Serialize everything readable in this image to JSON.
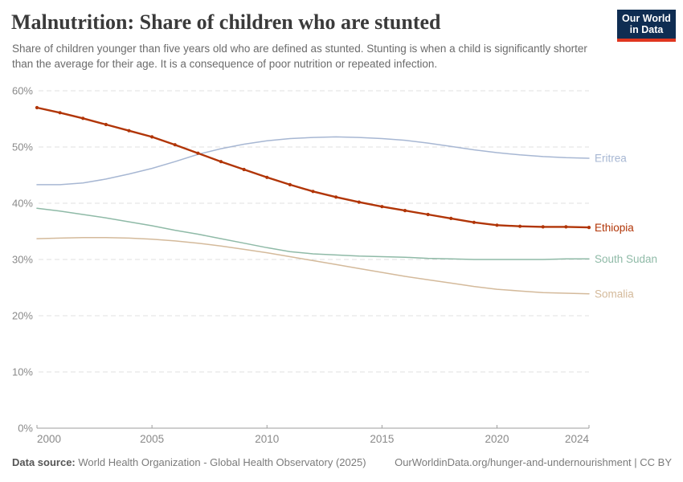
{
  "header": {
    "title": "Malnutrition: Share of children who are stunted",
    "subtitle": "Share of children younger than five years old who are defined as stunted. Stunting is when a child is significantly shorter than the average for their age. It is a consequence of poor nutrition or repeated infection.",
    "logo": {
      "line1": "Our World",
      "line2": "in Data",
      "bg_color": "#0f2d52",
      "accent_color": "#e0361f"
    }
  },
  "footer": {
    "data_source_label": "Data source:",
    "data_source_text": "World Health Organization - Global Health Observatory (2025)",
    "link_text": "OurWorldinData.org/hunger-and-undernourishment | CC BY"
  },
  "chart_data": {
    "type": "line",
    "title": "Malnutrition: Share of children who are stunted",
    "xlabel": "",
    "ylabel": "",
    "xlim": [
      2000,
      2024
    ],
    "ylim": [
      0,
      60
    ],
    "grid": "horizontal-dashed",
    "legend_position": "right-end-labels",
    "xticks": [
      {
        "value": 2000,
        "label": "2000"
      },
      {
        "value": 2005,
        "label": "2005"
      },
      {
        "value": 2010,
        "label": "2010"
      },
      {
        "value": 2015,
        "label": "2015"
      },
      {
        "value": 2020,
        "label": "2020"
      },
      {
        "value": 2024,
        "label": "2024"
      }
    ],
    "yticks": [
      {
        "value": 0,
        "label": "0%"
      },
      {
        "value": 10,
        "label": "10%"
      },
      {
        "value": 20,
        "label": "20%"
      },
      {
        "value": 30,
        "label": "30%"
      },
      {
        "value": 40,
        "label": "40%"
      },
      {
        "value": 50,
        "label": "50%"
      },
      {
        "value": 60,
        "label": "60%"
      }
    ],
    "x": [
      2000,
      2001,
      2002,
      2003,
      2004,
      2005,
      2006,
      2007,
      2008,
      2009,
      2010,
      2011,
      2012,
      2013,
      2014,
      2015,
      2016,
      2017,
      2018,
      2019,
      2020,
      2021,
      2022,
      2023,
      2024
    ],
    "series": [
      {
        "name": "Eritrea",
        "color": "#a7b7d3",
        "line_width": 1.5,
        "markers": false,
        "values": [
          43.3,
          43.3,
          43.6,
          44.3,
          45.2,
          46.2,
          47.4,
          48.7,
          49.7,
          50.5,
          51.1,
          51.5,
          51.7,
          51.8,
          51.7,
          51.5,
          51.2,
          50.7,
          50.1,
          49.5,
          49.0,
          48.6,
          48.3,
          48.1,
          48.0
        ]
      },
      {
        "name": "Ethiopia",
        "color": "#b13507",
        "line_width": 2.4,
        "markers": true,
        "values": [
          57.0,
          56.1,
          55.1,
          54.0,
          52.9,
          51.8,
          50.4,
          48.9,
          47.4,
          46.0,
          44.6,
          43.3,
          42.1,
          41.1,
          40.2,
          39.4,
          38.7,
          38.0,
          37.3,
          36.6,
          36.1,
          35.9,
          35.8,
          35.8,
          35.7
        ]
      },
      {
        "name": "South Sudan",
        "color": "#8fbaa7",
        "line_width": 1.5,
        "markers": false,
        "values": [
          39.1,
          38.6,
          38.0,
          37.4,
          36.7,
          36.0,
          35.2,
          34.5,
          33.7,
          32.9,
          32.1,
          31.4,
          31.0,
          30.8,
          30.6,
          30.5,
          30.4,
          30.2,
          30.1,
          30.0,
          30.0,
          30.0,
          30.0,
          30.1,
          30.1
        ]
      },
      {
        "name": "Somalia",
        "color": "#d4ba9b",
        "line_width": 1.5,
        "markers": false,
        "values": [
          33.7,
          33.8,
          33.9,
          33.9,
          33.8,
          33.6,
          33.3,
          32.9,
          32.4,
          31.8,
          31.2,
          30.5,
          29.8,
          29.1,
          28.4,
          27.7,
          27.0,
          26.4,
          25.8,
          25.2,
          24.7,
          24.4,
          24.1,
          24.0,
          23.9
        ]
      }
    ]
  }
}
